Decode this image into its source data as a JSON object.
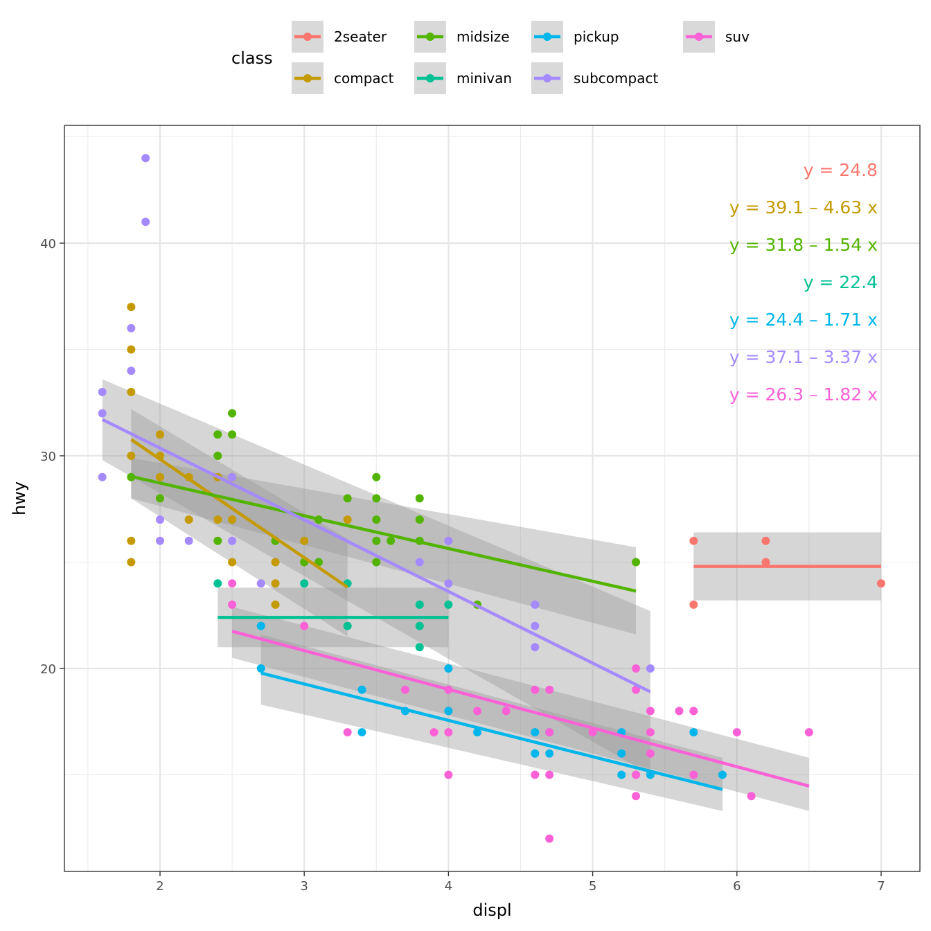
{
  "chart_data": {
    "type": "scatter",
    "title": "",
    "xlabel": "displ",
    "ylabel": "hwy",
    "xlim": [
      1.33,
      7.27
    ],
    "ylim": [
      10.4,
      45.5
    ],
    "x_ticks": [
      2,
      3,
      4,
      5,
      6,
      7
    ],
    "y_ticks": [
      20,
      30,
      40
    ],
    "x_minor": [
      1.5,
      2.5,
      3.5,
      4.5,
      5.5,
      6.5
    ],
    "y_minor": [
      15,
      25,
      35,
      45
    ],
    "grid": true,
    "legend": {
      "title": "class",
      "placement": "top",
      "entries": [
        "2seater",
        "compact",
        "midsize",
        "minivan",
        "pickup",
        "subcompact",
        "suv"
      ]
    },
    "series": [
      {
        "name": "2seater",
        "color": "#F8766D",
        "points": [
          [
            5.7,
            26
          ],
          [
            5.7,
            23
          ],
          [
            6.2,
            26
          ],
          [
            6.2,
            25
          ],
          [
            7.0,
            24
          ]
        ],
        "fit": {
          "intercept": 24.8,
          "slope": 0,
          "x_range": [
            5.7,
            7.0
          ],
          "se": 1.6
        },
        "equation": "y = 24.8"
      },
      {
        "name": "compact",
        "color": "#C49A00",
        "points": [
          [
            1.8,
            37
          ],
          [
            1.8,
            35
          ],
          [
            1.8,
            33
          ],
          [
            1.8,
            30
          ],
          [
            1.8,
            26
          ],
          [
            1.8,
            25
          ],
          [
            2.0,
            31
          ],
          [
            2.0,
            30
          ],
          [
            2.0,
            29
          ],
          [
            2.2,
            29
          ],
          [
            2.2,
            27
          ],
          [
            2.4,
            31
          ],
          [
            2.4,
            29
          ],
          [
            2.4,
            27
          ],
          [
            2.5,
            29
          ],
          [
            2.5,
            27
          ],
          [
            2.5,
            25
          ],
          [
            2.8,
            26
          ],
          [
            2.8,
            25
          ],
          [
            2.8,
            24
          ],
          [
            2.8,
            23
          ],
          [
            3.0,
            26
          ],
          [
            3.3,
            27
          ]
        ],
        "fit": {
          "intercept": 39.1,
          "slope": -4.63,
          "x_range": [
            1.8,
            3.3
          ],
          "se_band": [
            [
              1.8,
              28.0,
              32.2
            ],
            [
              3.3,
              21.5,
              26.1
            ]
          ]
        },
        "equation": "y = 39.1 – 4.63 x"
      },
      {
        "name": "midsize",
        "color": "#53B400",
        "points": [
          [
            1.8,
            29
          ],
          [
            2.0,
            28
          ],
          [
            2.4,
            31
          ],
          [
            2.4,
            30
          ],
          [
            2.4,
            26
          ],
          [
            2.5,
            32
          ],
          [
            2.5,
            31
          ],
          [
            2.8,
            26
          ],
          [
            3.0,
            25
          ],
          [
            3.1,
            27
          ],
          [
            3.1,
            25
          ],
          [
            3.3,
            28
          ],
          [
            3.5,
            29
          ],
          [
            3.5,
            28
          ],
          [
            3.5,
            27
          ],
          [
            3.5,
            26
          ],
          [
            3.5,
            25
          ],
          [
            3.6,
            26
          ],
          [
            3.8,
            28
          ],
          [
            3.8,
            27
          ],
          [
            3.8,
            26
          ],
          [
            4.2,
            23
          ],
          [
            5.3,
            25
          ]
        ],
        "fit": {
          "intercept": 31.8,
          "slope": -1.54,
          "x_range": [
            1.8,
            5.3
          ],
          "se_band": [
            [
              1.8,
              28.0,
              29.9
            ],
            [
              5.3,
              21.6,
              25.7
            ]
          ]
        },
        "equation": "y = 31.8 – 1.54 x"
      },
      {
        "name": "minivan",
        "color": "#00C094",
        "points": [
          [
            2.4,
            24
          ],
          [
            3.0,
            24
          ],
          [
            3.3,
            24
          ],
          [
            3.3,
            22
          ],
          [
            3.8,
            23
          ],
          [
            3.8,
            22
          ],
          [
            3.8,
            21
          ],
          [
            4.0,
            23
          ]
        ],
        "fit": {
          "intercept": 22.4,
          "slope": 0,
          "x_range": [
            2.4,
            4.0
          ],
          "se": 1.4
        },
        "equation": "y = 22.4"
      },
      {
        "name": "pickup",
        "color": "#00B6EB",
        "points": [
          [
            2.7,
            20
          ],
          [
            2.7,
            22
          ],
          [
            3.4,
            19
          ],
          [
            3.4,
            17
          ],
          [
            3.7,
            18
          ],
          [
            4.0,
            20
          ],
          [
            4.0,
            18
          ],
          [
            4.2,
            17
          ],
          [
            4.6,
            17
          ],
          [
            4.6,
            16
          ],
          [
            4.7,
            17
          ],
          [
            4.7,
            16
          ],
          [
            5.2,
            17
          ],
          [
            5.2,
            16
          ],
          [
            5.2,
            15
          ],
          [
            5.4,
            15
          ],
          [
            5.7,
            17
          ],
          [
            5.9,
            15
          ]
        ],
        "fit": {
          "intercept": 24.4,
          "slope": -1.71,
          "x_range": [
            2.7,
            5.9
          ],
          "se_band": [
            [
              2.7,
              18.3,
              21.6
            ],
            [
              5.9,
              13.3,
              15.8
            ]
          ]
        },
        "equation": "y = 24.4 – 1.71 x"
      },
      {
        "name": "subcompact",
        "color": "#A58AFF",
        "points": [
          [
            1.6,
            33
          ],
          [
            1.6,
            32
          ],
          [
            1.6,
            29
          ],
          [
            1.8,
            36
          ],
          [
            1.8,
            34
          ],
          [
            1.9,
            44
          ],
          [
            1.9,
            41
          ],
          [
            2.0,
            27
          ],
          [
            2.0,
            26
          ],
          [
            2.2,
            26
          ],
          [
            2.5,
            29
          ],
          [
            2.5,
            26
          ],
          [
            2.7,
            24
          ],
          [
            3.8,
            25
          ],
          [
            4.0,
            26
          ],
          [
            4.0,
            24
          ],
          [
            4.6,
            23
          ],
          [
            4.6,
            22
          ],
          [
            4.6,
            21
          ],
          [
            5.4,
            20
          ]
        ],
        "fit": {
          "intercept": 37.1,
          "slope": -3.37,
          "x_range": [
            1.6,
            5.4
          ],
          "se_band": [
            [
              1.6,
              29.8,
              33.6
            ],
            [
              5.4,
              15.0,
              22.7
            ]
          ]
        },
        "equation": "y = 37.1 – 3.37 x"
      },
      {
        "name": "suv",
        "color": "#FB61D7",
        "points": [
          [
            2.5,
            24
          ],
          [
            2.5,
            23
          ],
          [
            3.0,
            22
          ],
          [
            3.3,
            17
          ],
          [
            3.7,
            19
          ],
          [
            3.9,
            17
          ],
          [
            4.0,
            19
          ],
          [
            4.0,
            17
          ],
          [
            4.0,
            15
          ],
          [
            4.2,
            18
          ],
          [
            4.4,
            18
          ],
          [
            4.6,
            19
          ],
          [
            4.6,
            15
          ],
          [
            4.7,
            19
          ],
          [
            4.7,
            17
          ],
          [
            4.7,
            15
          ],
          [
            4.7,
            12
          ],
          [
            5.0,
            17
          ],
          [
            5.3,
            20
          ],
          [
            5.3,
            19
          ],
          [
            5.3,
            15
          ],
          [
            5.3,
            14
          ],
          [
            5.4,
            18
          ],
          [
            5.4,
            17
          ],
          [
            5.4,
            16
          ],
          [
            5.6,
            18
          ],
          [
            5.7,
            18
          ],
          [
            5.7,
            15
          ],
          [
            6.0,
            17
          ],
          [
            6.1,
            14
          ],
          [
            6.5,
            17
          ]
        ],
        "fit": {
          "intercept": 26.3,
          "slope": -1.82,
          "x_range": [
            2.5,
            6.5
          ],
          "se_band": [
            [
              2.5,
              20.5,
              22.9
            ],
            [
              6.5,
              13.3,
              15.8
            ]
          ]
        },
        "equation": "y = 26.3 – 1.82 x"
      }
    ]
  }
}
